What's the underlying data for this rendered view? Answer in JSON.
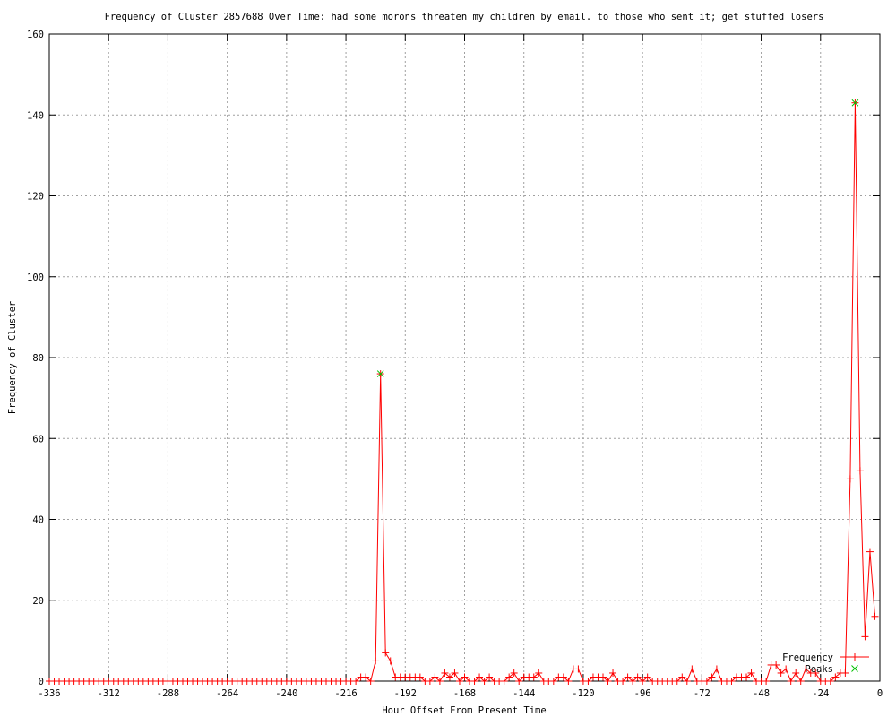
{
  "chart_data": {
    "type": "line",
    "title": "Frequency of Cluster 2857688 Over Time: had some morons threaten my children by email. to those who sent it; get stuffed losers",
    "xlabel": "Hour Offset From Present Time",
    "ylabel": "Frequency of Cluster",
    "xlim": [
      -336,
      0
    ],
    "ylim": [
      0,
      160
    ],
    "xticks": [
      -336,
      -312,
      -288,
      -264,
      -240,
      -216,
      -192,
      -168,
      -144,
      -120,
      -96,
      -72,
      -48,
      -24,
      0
    ],
    "yticks": [
      0,
      20,
      40,
      60,
      80,
      100,
      120,
      140,
      160
    ],
    "grid": true,
    "legend_position": "bottom-right",
    "colors": {
      "Frequency": "#ff0000",
      "Peaks": "#00c000",
      "grid": "#a0a0a0"
    },
    "x_start": -336,
    "x_step": 2,
    "series": [
      {
        "name": "Frequency",
        "marker": "plus",
        "values": [
          0,
          0,
          0,
          0,
          0,
          0,
          0,
          0,
          0,
          0,
          0,
          0,
          0,
          0,
          0,
          0,
          0,
          0,
          0,
          0,
          0,
          0,
          0,
          0,
          0,
          0,
          0,
          0,
          0,
          0,
          0,
          0,
          0,
          0,
          0,
          0,
          0,
          0,
          0,
          0,
          0,
          0,
          0,
          0,
          0,
          0,
          0,
          0,
          0,
          0,
          0,
          0,
          0,
          0,
          0,
          0,
          0,
          0,
          0,
          0,
          0,
          0,
          0,
          1,
          1,
          0,
          5,
          76,
          7,
          5,
          1,
          1,
          1,
          1,
          1,
          1,
          0,
          0,
          1,
          0,
          2,
          1,
          2,
          0,
          1,
          0,
          0,
          1,
          0,
          1,
          0,
          0,
          0,
          1,
          2,
          0,
          1,
          1,
          1,
          2,
          0,
          0,
          0,
          1,
          1,
          0,
          3,
          3,
          0,
          0,
          1,
          1,
          1,
          0,
          2,
          0,
          0,
          1,
          0,
          1,
          0,
          1,
          0,
          0,
          0,
          0,
          0,
          0,
          1,
          0,
          3,
          0,
          0,
          0,
          1,
          3,
          0,
          0,
          0,
          1,
          1,
          1,
          2,
          0,
          0,
          0,
          4,
          4,
          2,
          3,
          0,
          2,
          0,
          3,
          2,
          2,
          0,
          0,
          0,
          1,
          2,
          2,
          50,
          143,
          52,
          11,
          32,
          16
        ]
      },
      {
        "name": "Peaks",
        "marker": "cross",
        "points": [
          {
            "x": -202,
            "y": 76
          },
          {
            "x": -10,
            "y": 143
          }
        ]
      }
    ]
  }
}
